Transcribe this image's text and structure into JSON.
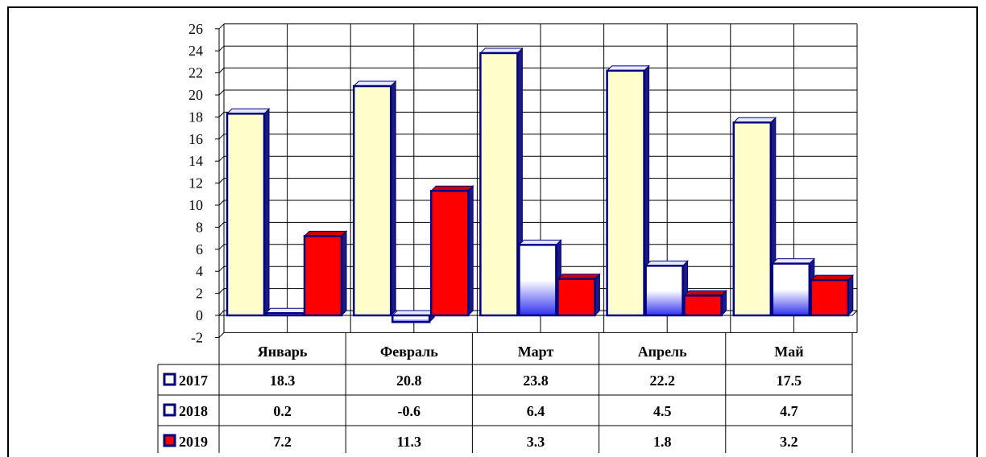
{
  "chart_data": {
    "type": "bar",
    "title": "",
    "xlabel": "",
    "ylabel": "",
    "categories": [
      "Январь",
      "Февраль",
      "Март",
      "Апрель",
      "Май"
    ],
    "series": [
      {
        "name": "2017",
        "values": [
          18.3,
          20.8,
          23.8,
          22.2,
          17.5
        ],
        "value_labels": [
          "18.3",
          "20.8",
          "23.8",
          "22.2",
          "17.5"
        ],
        "color": "#ffffcc",
        "edge": "#000080"
      },
      {
        "name": "2018",
        "values": [
          0.2,
          -0.6,
          6.4,
          4.5,
          4.7
        ],
        "value_labels": [
          "0.2",
          "-0.6",
          "6.4",
          "4.5",
          "4.7"
        ],
        "color": "#4040ff",
        "edge": "#000080"
      },
      {
        "name": "2019",
        "values": [
          7.2,
          11.3,
          3.3,
          1.8,
          3.2
        ],
        "value_labels": [
          "7.2",
          "11.3",
          "3.3",
          "1.8",
          "3.2"
        ],
        "color": "#ff0000",
        "edge": "#000080"
      }
    ],
    "ylim": [
      -2,
      26
    ],
    "yticks": [
      "-2",
      "0",
      "2",
      "4",
      "6",
      "8",
      "10",
      "12",
      "14",
      "16",
      "18",
      "20",
      "22",
      "24",
      "26"
    ],
    "grid": true,
    "legend": "data-table",
    "style": "3d-column"
  }
}
